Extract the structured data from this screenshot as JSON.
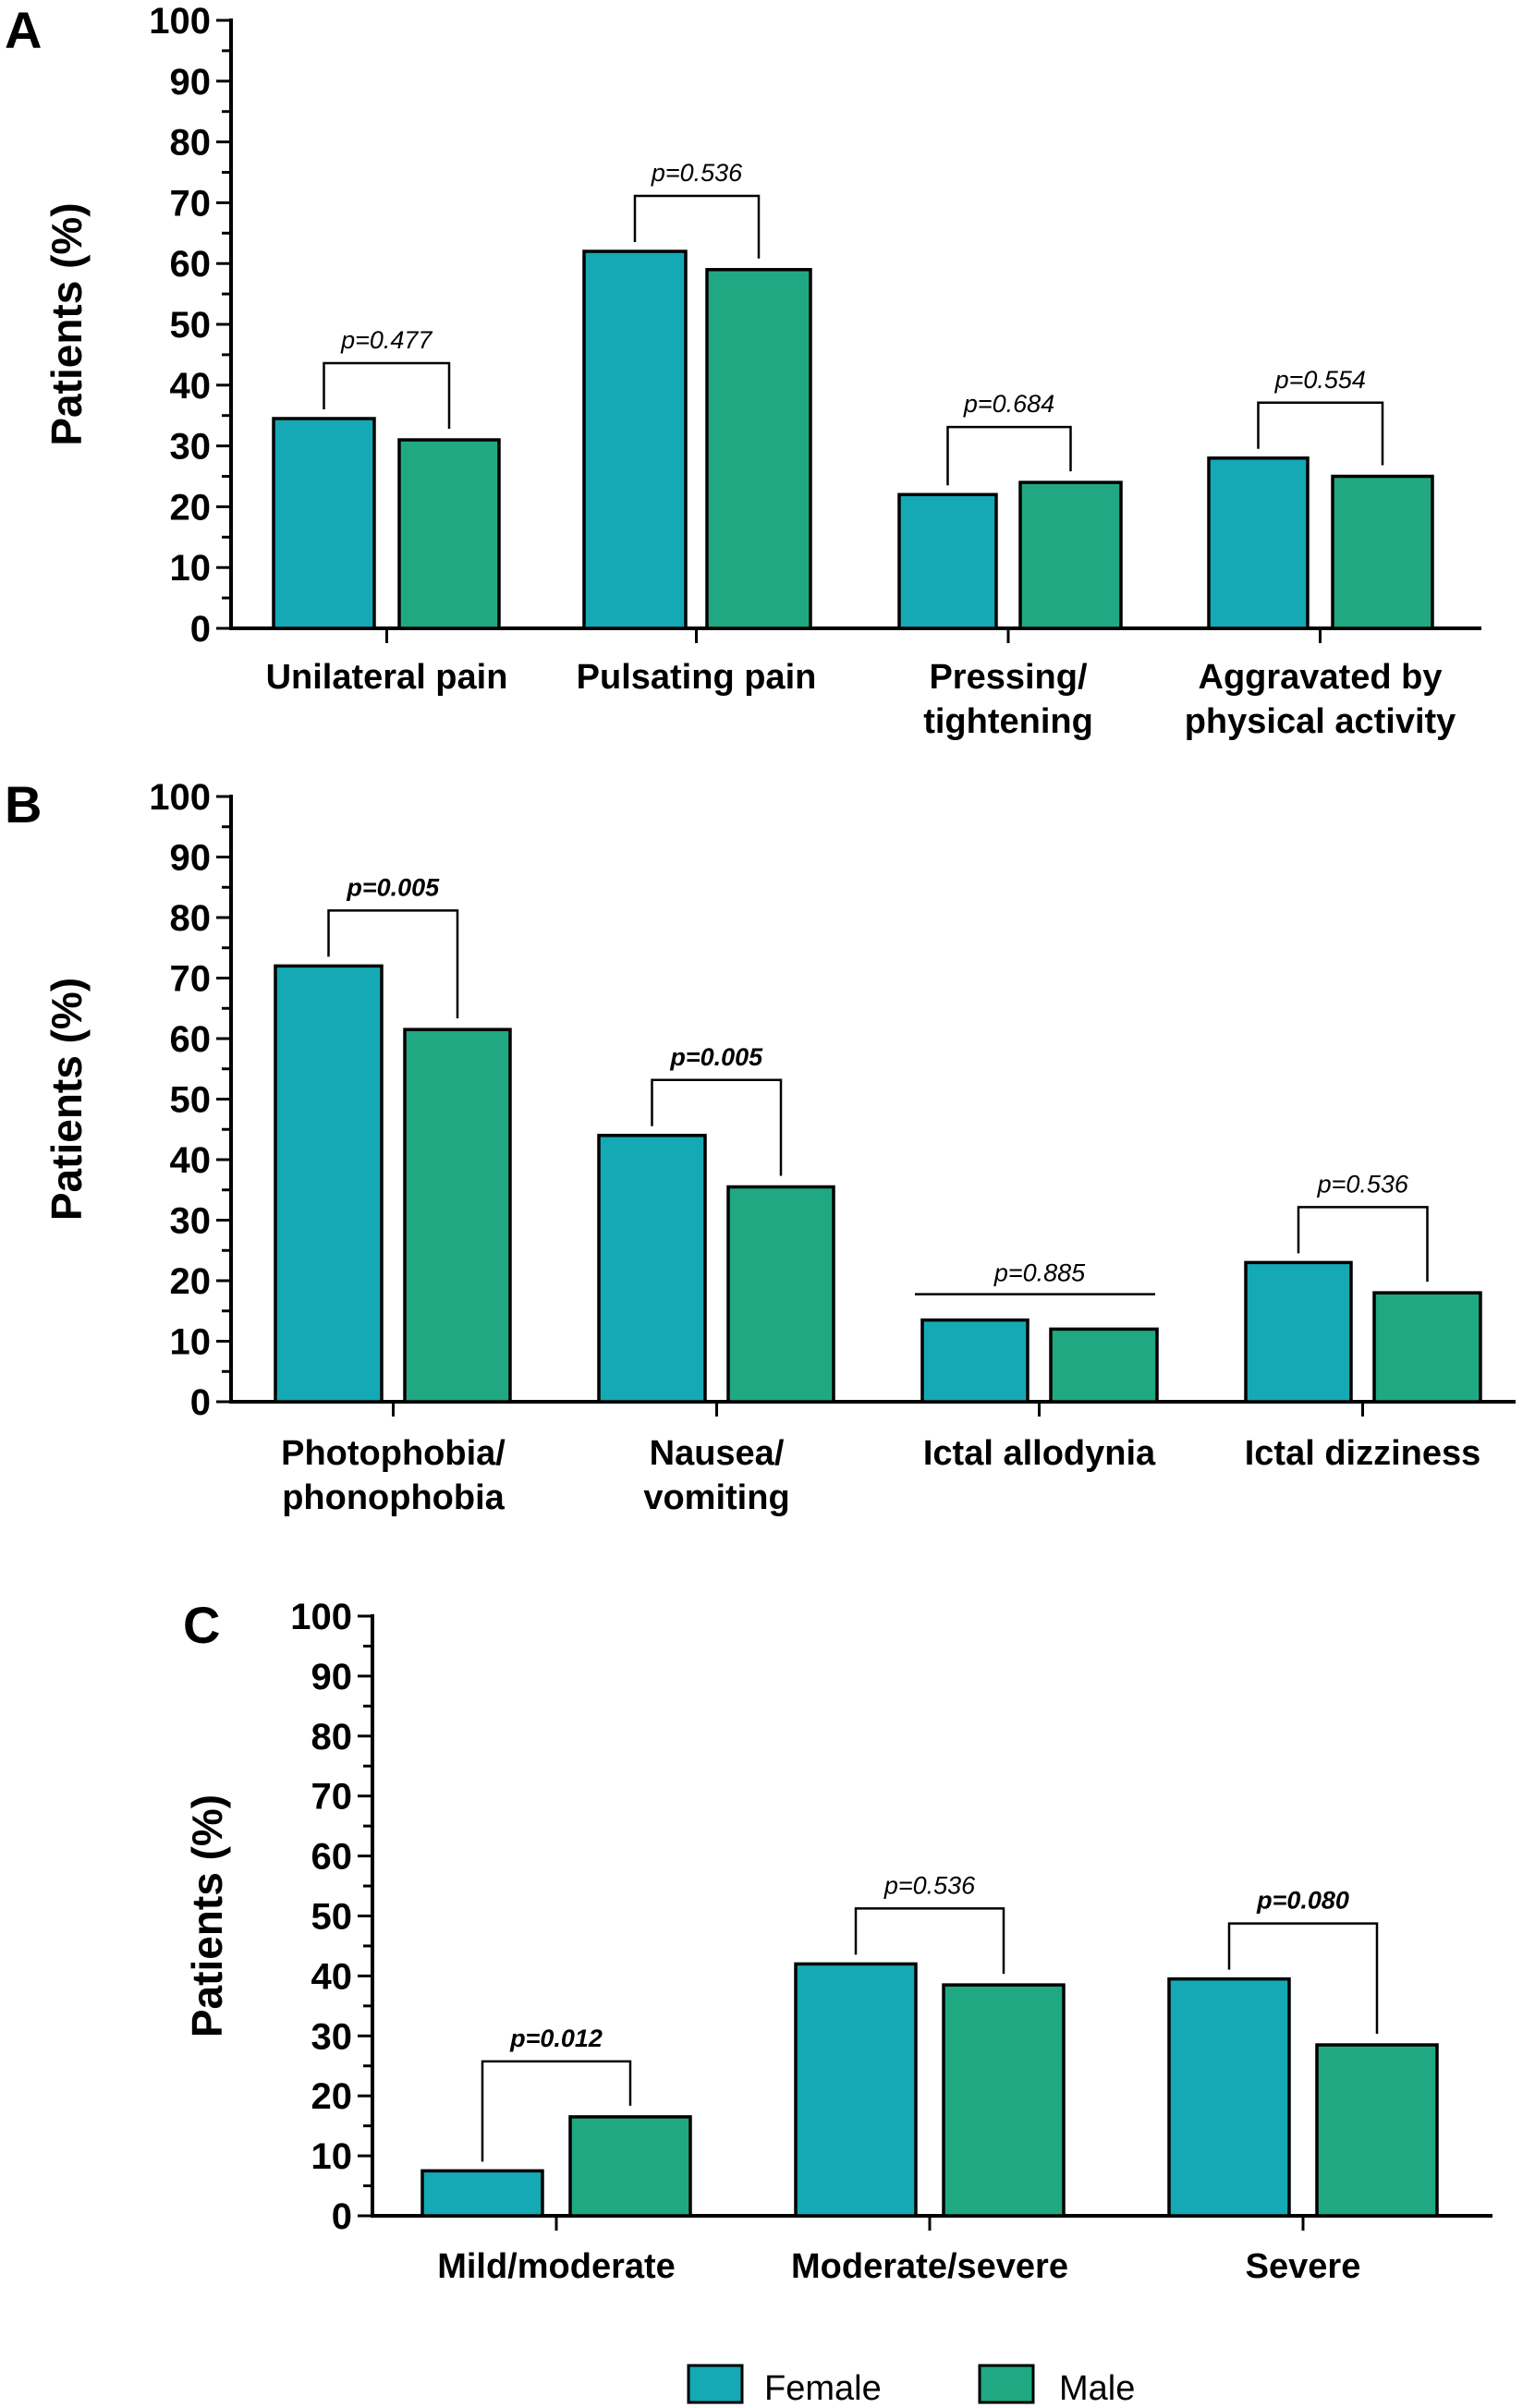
{
  "colors": {
    "female": "#14A9B4",
    "male": "#20A883",
    "axis": "#000000"
  },
  "legend": {
    "female": "Female",
    "male": "Male"
  },
  "chart_data": [
    {
      "type": "bar",
      "panel": "A",
      "ylabel": "Patients (%)",
      "ylim": [
        0,
        100
      ],
      "yticks": [
        "0",
        "10",
        "20",
        "30",
        "40",
        "50",
        "60",
        "70",
        "80",
        "90",
        "100"
      ],
      "categories": [
        [
          "Unilateral pain"
        ],
        [
          "Pulsating pain"
        ],
        [
          "Pressing/",
          "tightening"
        ],
        [
          "Aggravated by",
          "physical activity"
        ]
      ],
      "series": [
        {
          "name": "Female",
          "values": [
            34.5,
            62,
            22,
            28
          ]
        },
        {
          "name": "Male",
          "values": [
            31,
            59,
            24,
            25
          ]
        }
      ],
      "pvalues": [
        {
          "text": "p=0.477",
          "bold": false,
          "bracket": "a"
        },
        {
          "text": "p=0.536",
          "bold": false,
          "bracket": "a"
        },
        {
          "text": "p=0.684",
          "bold": false,
          "bracket": "a"
        },
        {
          "text": "p=0.554",
          "bold": false,
          "bracket": "a"
        }
      ]
    },
    {
      "type": "bar",
      "panel": "B",
      "ylabel": "Patients (%)",
      "ylim": [
        0,
        100
      ],
      "yticks": [
        "0",
        "10",
        "20",
        "30",
        "40",
        "50",
        "60",
        "70",
        "80",
        "90",
        "100"
      ],
      "categories": [
        [
          "Photophobia/",
          "phonophobia"
        ],
        [
          "Nausea/",
          "vomiting"
        ],
        [
          "Ictal allodynia"
        ],
        [
          "Ictal dizziness"
        ]
      ],
      "series": [
        {
          "name": "Female",
          "values": [
            72,
            44,
            13.5,
            23
          ]
        },
        {
          "name": "Male",
          "values": [
            61.5,
            35.5,
            12,
            18
          ]
        }
      ],
      "pvalues": [
        {
          "text": "p=0.005",
          "bold": true,
          "bracket": "a"
        },
        {
          "text": "p=0.005",
          "bold": true,
          "bracket": "a"
        },
        {
          "text": "p=0.885",
          "bold": false,
          "bracket": "flat"
        },
        {
          "text": "p=0.536",
          "bold": false,
          "bracket": "a"
        }
      ]
    },
    {
      "type": "bar",
      "panel": "C",
      "ylabel": "Patients (%)",
      "ylim": [
        0,
        100
      ],
      "yticks": [
        "0",
        "10",
        "20",
        "30",
        "40",
        "50",
        "60",
        "70",
        "80",
        "90",
        "100"
      ],
      "categories": [
        [
          "Mild/moderate"
        ],
        [
          "Moderate/severe"
        ],
        [
          "Severe"
        ]
      ],
      "series": [
        {
          "name": "Female",
          "values": [
            7.5,
            42,
            39.5
          ]
        },
        {
          "name": "Male",
          "values": [
            16.5,
            38.5,
            28.5
          ]
        }
      ],
      "pvalues": [
        {
          "text": "p=0.012",
          "bold": true,
          "bracket": "a"
        },
        {
          "text": "p=0.536",
          "bold": false,
          "bracket": "a"
        },
        {
          "text": "p=0.080",
          "bold": true,
          "bracket": "a"
        }
      ]
    }
  ]
}
